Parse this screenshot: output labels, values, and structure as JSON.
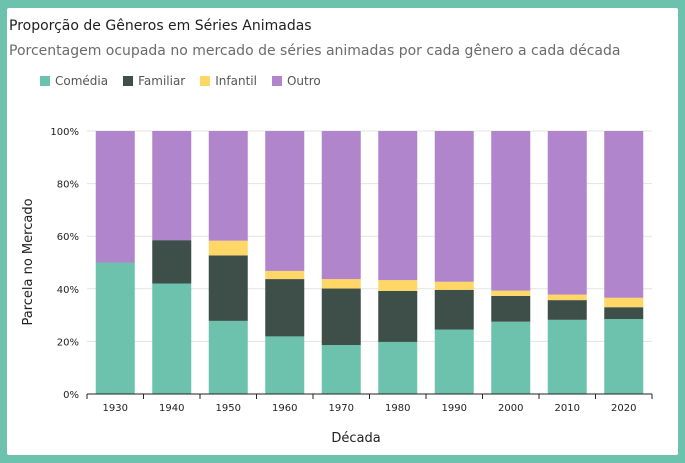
{
  "header": {
    "title": "Proporção de Gêneros em Séries Animadas",
    "subtitle": "Porcentagem ocupada no mercado de séries animadas por cada gênero a cada década"
  },
  "legend": [
    {
      "label": "Comédia",
      "color": "#6cc2ad"
    },
    {
      "label": "Familiar",
      "color": "#3e4f49"
    },
    {
      "label": "Infantil",
      "color": "#fed766"
    },
    {
      "label": "Outro",
      "color": "#b085cc"
    }
  ],
  "chart_data": {
    "type": "bar",
    "stacked": true,
    "xlabel": "Década",
    "ylabel": "Parcela no Mercado",
    "ylim": [
      0,
      100
    ],
    "yticks": [
      "0%",
      "20%",
      "40%",
      "60%",
      "80%",
      "100%"
    ],
    "grid": true,
    "legend_position": "top-left",
    "categories": [
      "1930",
      "1940",
      "1950",
      "1960",
      "1970",
      "1980",
      "1990",
      "2000",
      "2010",
      "2020"
    ],
    "series": [
      {
        "name": "Comédia",
        "color": "#6cc2ad",
        "values": [
          50,
          42,
          27.8,
          21.9,
          18.6,
          19.8,
          24.5,
          27.5,
          28.2,
          28.5
        ]
      },
      {
        "name": "Familiar",
        "color": "#3e4f49",
        "values": [
          0,
          16.5,
          24.9,
          21.8,
          21.5,
          19.4,
          15.1,
          9.8,
          7.5,
          4.5
        ]
      },
      {
        "name": "Infantil",
        "color": "#fed766",
        "values": [
          0,
          0,
          5.6,
          3.1,
          3.6,
          4.1,
          3.1,
          2,
          2.1,
          3.6
        ]
      },
      {
        "name": "Outro",
        "color": "#b085cc",
        "values": [
          50,
          41.5,
          41.7,
          53.2,
          56.3,
          56.7,
          57.3,
          60.7,
          62.2,
          63.4
        ]
      }
    ]
  }
}
